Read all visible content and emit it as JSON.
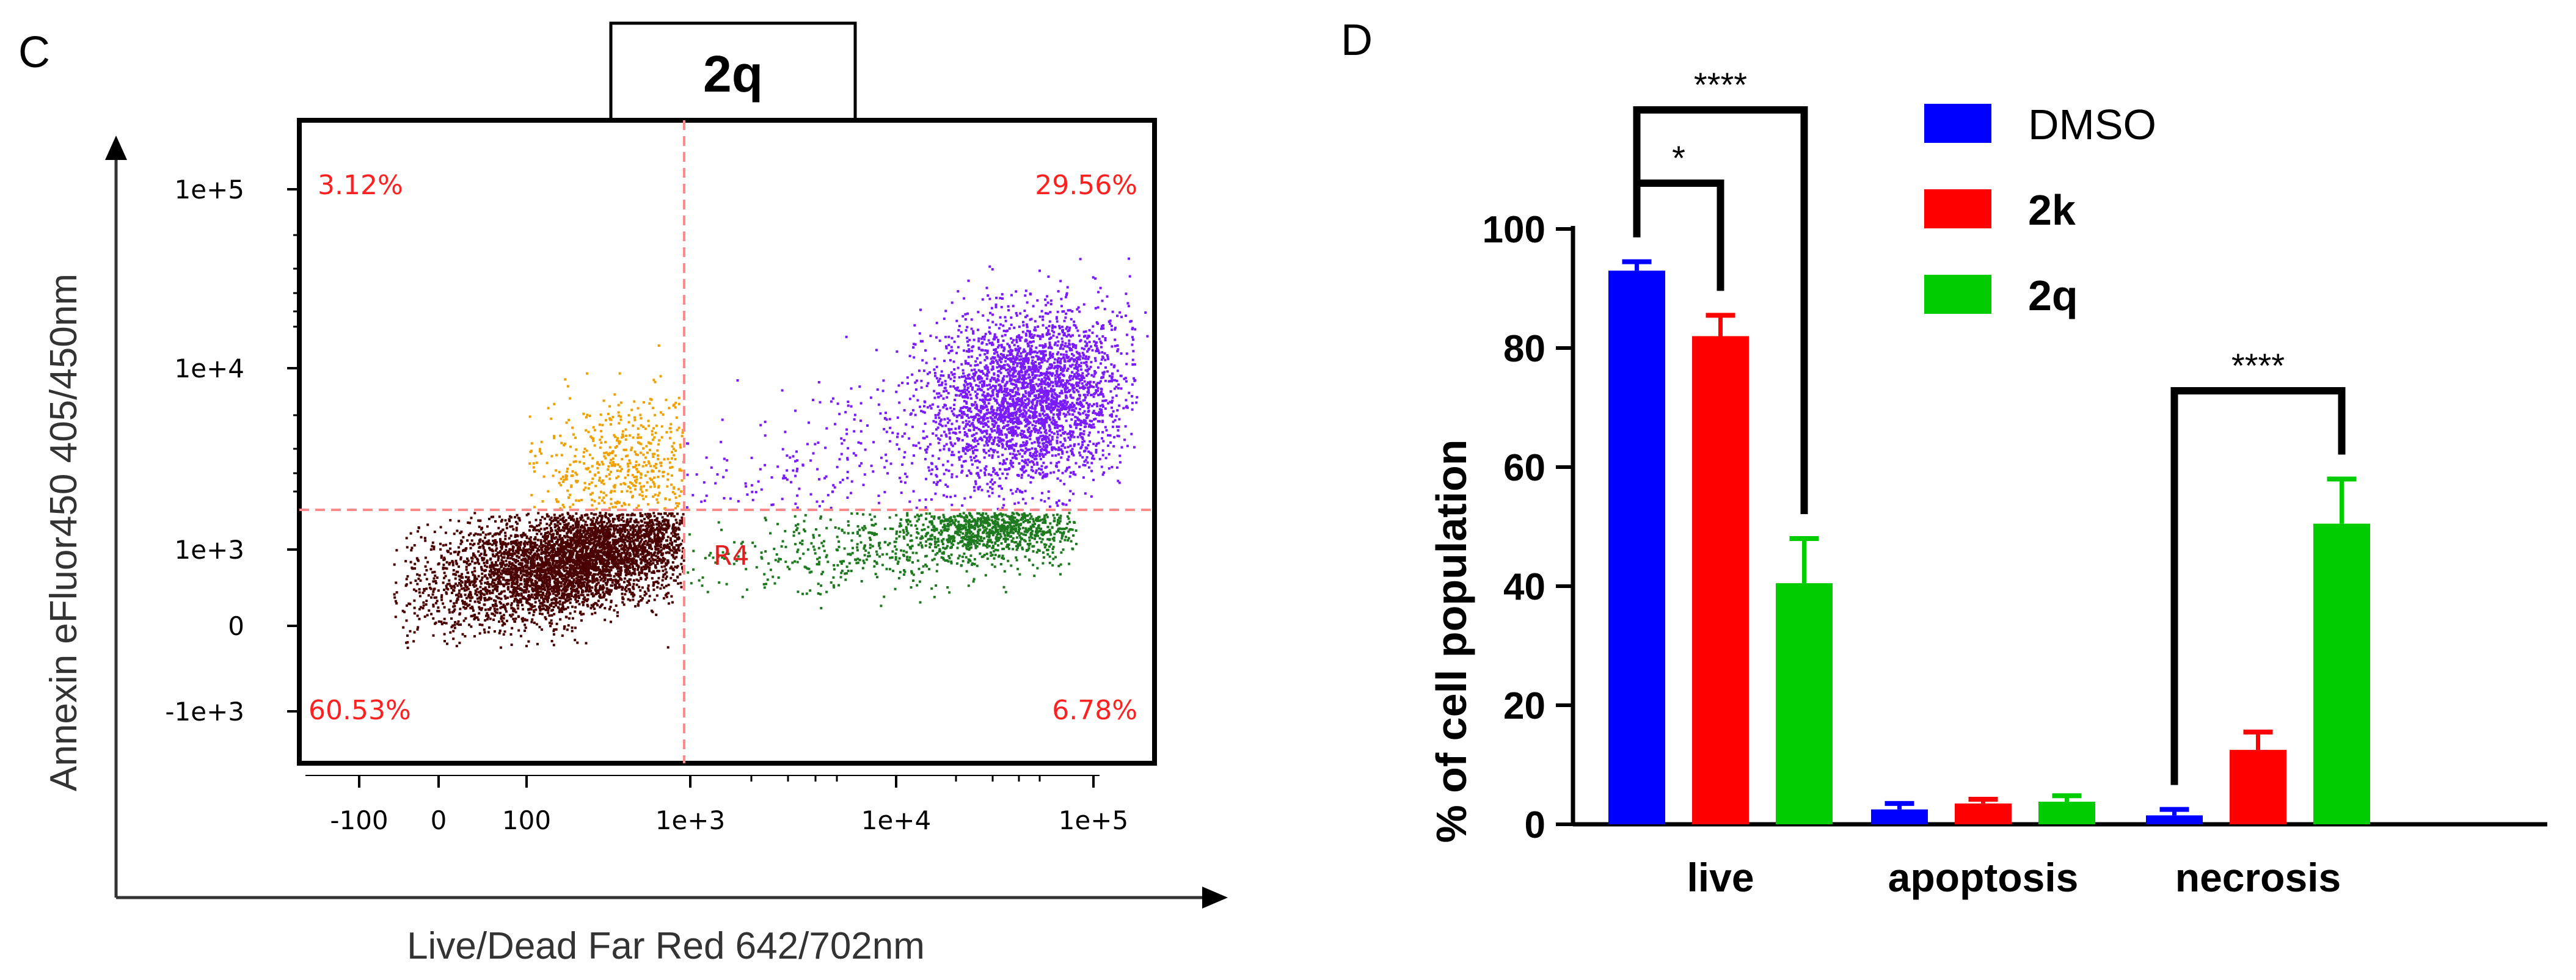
{
  "panel_c": {
    "panel_label": "C",
    "title": "2q",
    "x_axis_label": "Live/Dead Far Red 642/702nm",
    "y_axis_label": "Annexin eFluor450 405/450nm",
    "gate_label": "R4"
  },
  "panel_d": {
    "panel_label": "D"
  },
  "chart_data": [
    {
      "type": "scatter",
      "title": "2q",
      "xlabel": "Live/Dead Far Red 642/702nm",
      "ylabel": "Annexin eFluor450 405/450nm",
      "x_ticks": [
        "-100",
        "0",
        "100",
        "1e+3",
        "1e+4",
        "1e+5"
      ],
      "y_ticks": [
        "1e+5",
        "1e+4",
        "1e+3",
        "0",
        "-1e+3"
      ],
      "gate": "R4",
      "quadrants": [
        {
          "position": "top-left",
          "label": "3.12%",
          "value": 3.12
        },
        {
          "position": "top-right",
          "label": "29.56%",
          "value": 29.56
        },
        {
          "position": "bottom-left",
          "label": "60.53%",
          "value": 60.53
        },
        {
          "position": "bottom-right",
          "label": "6.78%",
          "value": 6.78
        }
      ],
      "population_colors": {
        "live": "#4a0000",
        "early_apoptotic": "#f0a000",
        "late_apoptotic": "#7a1aff",
        "necrotic": "#1e7a1e"
      },
      "gate_line_color": "#ff7b7b",
      "label_color": "#ff2020"
    },
    {
      "type": "bar",
      "ylabel": "% of cell population",
      "categories": [
        "live",
        "apoptosis",
        "necrosis"
      ],
      "ylim": [
        0,
        100
      ],
      "y_ticks": [
        "0",
        "20",
        "40",
        "60",
        "80",
        "100"
      ],
      "series": [
        {
          "name": "DMSO",
          "color": "#0000ff",
          "values": [
            93,
            2.5,
            1.5
          ],
          "errors": [
            1.5,
            1.0,
            1.0
          ]
        },
        {
          "name": "2k",
          "color": "#ff0000",
          "values": [
            82,
            3.5,
            12.5
          ],
          "errors": [
            3.5,
            0.7,
            3.0
          ]
        },
        {
          "name": "2q",
          "color": "#00cc00",
          "values": [
            40.5,
            3.8,
            50.5
          ],
          "errors": [
            7.5,
            1.0,
            7.5
          ]
        }
      ],
      "significance": [
        {
          "label": "****",
          "category": "live",
          "from": "DMSO",
          "to": "2q"
        },
        {
          "label": "*",
          "category": "live",
          "from": "DMSO",
          "to": "2k"
        },
        {
          "label": "****",
          "category": "necrosis",
          "from": "DMSO",
          "to": "2q"
        }
      ]
    }
  ]
}
